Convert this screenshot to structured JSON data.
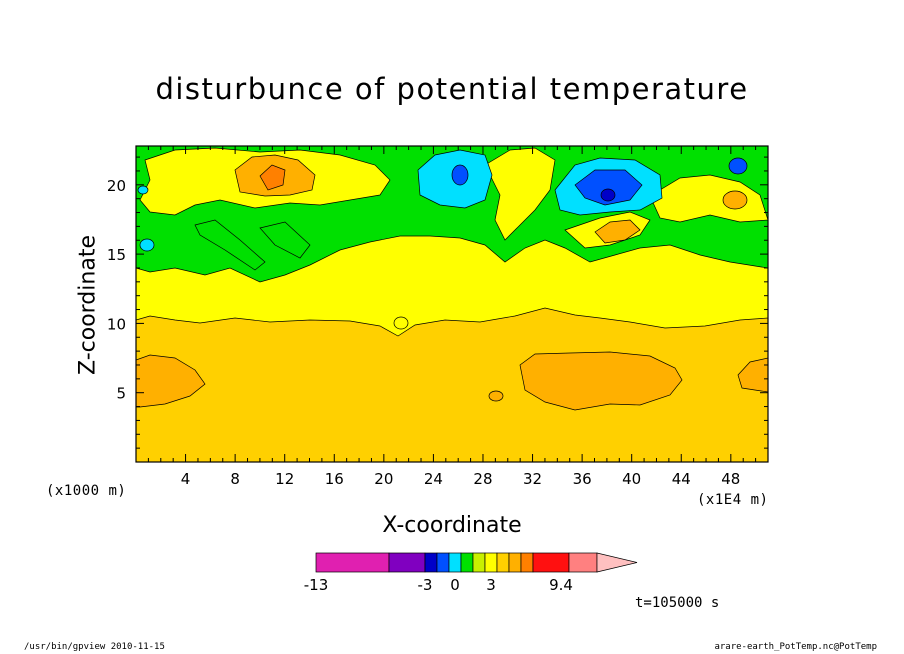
{
  "chart_data": {
    "type": "heatmap",
    "title": "disturbunce of potential temperature",
    "xlabel": "X-coordinate",
    "ylabel": "Z-coordinate",
    "x_unit": "(x1000 m)",
    "x_scale": "(x1E4 m)",
    "time_label": "t=105000 s",
    "xlim": [
      0,
      51
    ],
    "ylim": [
      0,
      22.8
    ],
    "x_ticks": [
      4,
      8,
      12,
      16,
      20,
      24,
      28,
      32,
      36,
      40,
      44,
      48
    ],
    "y_ticks": [
      5,
      10,
      15,
      20
    ],
    "x_tick_labels": [
      "4",
      "8",
      "12",
      "16",
      "20",
      "24",
      "28",
      "32",
      "36",
      "40",
      "44",
      "48"
    ],
    "y_tick_labels": [
      "5",
      "10",
      "15",
      "20"
    ],
    "colorbar": {
      "labels": [
        "-13",
        "-3",
        "0",
        "3",
        "9.4"
      ],
      "label_values": [
        -13,
        -3,
        0,
        3,
        9.4
      ],
      "bins": [
        {
          "color": "#e020b0"
        },
        {
          "color": "#8000c0"
        },
        {
          "color": "#0000c8"
        },
        {
          "color": "#0050ff"
        },
        {
          "color": "#00e0ff"
        },
        {
          "color": "#00e000"
        },
        {
          "color": "#c8f000"
        },
        {
          "color": "#ffff00"
        },
        {
          "color": "#ffd000"
        },
        {
          "color": "#ffb000"
        },
        {
          "color": "#ff8000"
        },
        {
          "color": "#ff1010"
        },
        {
          "color": "#ff8080"
        },
        {
          "color": "#ffc0c0"
        }
      ]
    },
    "regions": [
      {
        "level": "0 to 0.5 (green)",
        "z_range": [
          14,
          22.8
        ]
      },
      {
        "level": "0.5 to 1 (yellow)",
        "z_range": [
          10.5,
          17
        ]
      },
      {
        "level": "1 to 1.5 (gold)",
        "z_range": [
          0,
          10.5
        ]
      },
      {
        "level": "1.5 to 2 (orange) lower-left",
        "x_range": [
          0,
          5.8
        ],
        "z_range": [
          4.2,
          7.6
        ]
      },
      {
        "level": "1.5 to 2 (orange) lower-center",
        "x_range": [
          30.5,
          44.5
        ],
        "z_range": [
          3.7,
          7.8
        ]
      },
      {
        "level": "1.5 to 2 (orange) lower-right",
        "x_range": [
          48.5,
          51
        ],
        "z_range": [
          5.5,
          7.5
        ]
      },
      {
        "level": "-1 to -0.5 (cyan) upper",
        "x_range": [
          23,
          30
        ],
        "z_range": [
          18,
          22.5
        ]
      },
      {
        "level": "-2 to -1 (blue) upper",
        "x_range": [
          35,
          40.5
        ],
        "z_range": [
          18.5,
          21
        ]
      }
    ]
  },
  "footer": {
    "left": "/usr/bin/gpview   2010-11-15",
    "right": "arare-earth_PotTemp.nc@PotTemp"
  }
}
